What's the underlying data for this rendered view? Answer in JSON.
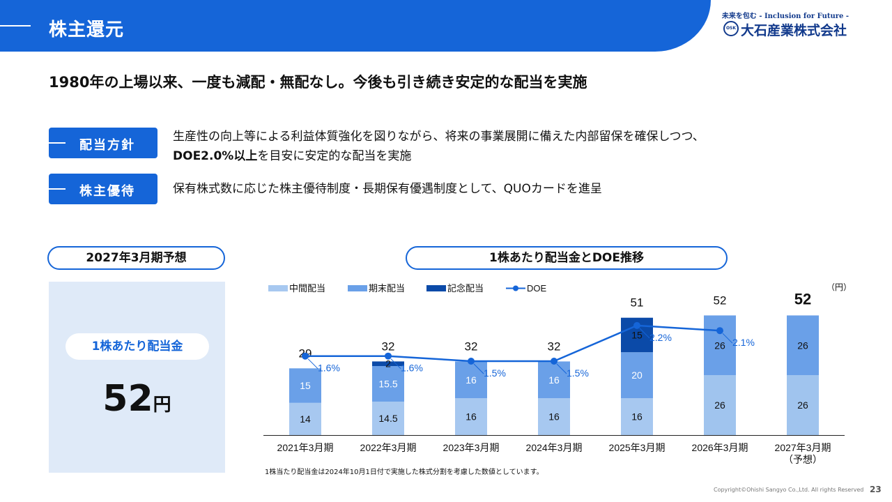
{
  "header": {
    "title": "株主還元"
  },
  "logo": {
    "tagline": "未来を包む - Inclusion for Future -",
    "company": "大石産業株式会社",
    "mark": "OSK"
  },
  "headline": "1980年の上場以来、一度も減配・無配なし。今後も引き続き安定的な配当を実施",
  "policies": {
    "dividend": {
      "label": "配当方針",
      "line1": "生産性の向上等による利益体質強化を図りながら、将来の事業展開に備えた内部留保を確保しつつ、",
      "line2_bold": "DOE2.0%以上",
      "line2_rest": "を目安に安定的な配当を実施"
    },
    "benefit": {
      "label": "株主優待",
      "text": "保有株式数に応じた株主優待制度・長期保有優遇制度として、QUOカードを進呈"
    }
  },
  "forecast": {
    "pill": "2027年3月期予想",
    "label": "1株あたり配当金",
    "value": "52",
    "unit": "円"
  },
  "chart_title": "1株あたり配当金とDOE推移",
  "unit_label": "（円）",
  "footnote": "1株当たり配当金は2024年10月1日付で実施した株式分割を考慮した数値としています。",
  "copyright": "Copyright©Ohishi Sangyo Co.,Ltd. All rights Reserved",
  "page_number": "23",
  "colors": {
    "brand": "#1565d8",
    "interim": "#a7c8f0",
    "yearend": "#6aa0e8",
    "commemorative": "#0b4aa8",
    "doe": "#1565d8",
    "panel": "#dfeaf8"
  },
  "chart_data": {
    "type": "bar",
    "stacked": true,
    "categories": [
      "2021年3月期",
      "2022年3月期",
      "2023年3月期",
      "2024年3月期",
      "2025年3月期",
      "2026年3月期",
      "2027年3月期\n（予想）"
    ],
    "series": [
      {
        "name": "中間配当",
        "values": [
          14,
          14.5,
          16,
          16,
          16,
          26,
          26
        ]
      },
      {
        "name": "期末配当",
        "values": [
          15,
          15.5,
          16,
          16,
          20,
          26,
          26
        ]
      },
      {
        "name": "記念配当",
        "values": [
          0,
          2,
          0,
          0,
          15,
          0,
          0
        ]
      }
    ],
    "totals": [
      29,
      32,
      32,
      32,
      51,
      52,
      52
    ],
    "line_series": {
      "name": "DOE",
      "values": [
        1.6,
        1.6,
        1.5,
        1.5,
        2.2,
        2.1,
        null
      ],
      "labels": [
        "1.6%",
        "1.6%",
        "1.5%",
        "1.5%",
        "2.2%",
        "2.1%",
        ""
      ]
    },
    "legend": [
      "中間配当",
      "期末配当",
      "記念配当",
      "DOE"
    ],
    "legend_position": "top-left",
    "grid": false
  }
}
